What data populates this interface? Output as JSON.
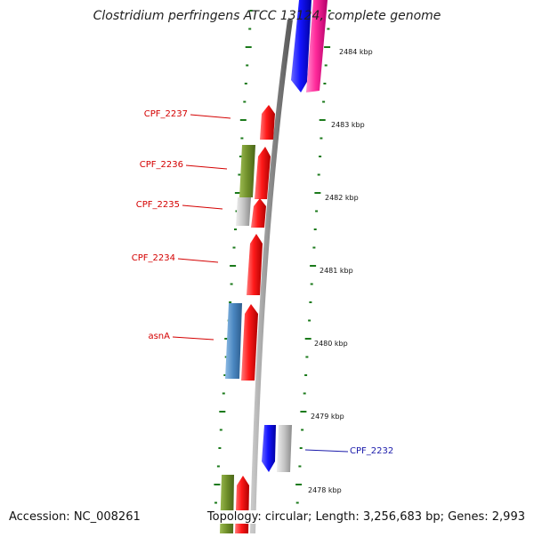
{
  "title": "Clostridium perfringens ATCC 13124, complete genome",
  "footer": {
    "accession": "Accession: NC_008261",
    "topology": "Topology: circular; Length: 3,256,683 bp; Genes: 2,993"
  },
  "colors": {
    "backbone": "#8a8a8a",
    "tick": "#1b7a1b",
    "cds_red": "#ff1a1a",
    "cds_blue": "#1414ff",
    "cds_pink": "#ff2a9a",
    "cds_gray": "#bdbdbd",
    "cds_olive": "#6f8f2a",
    "cds_steel": "#4a86c0",
    "label_red": "#d40000",
    "label_blue": "#1a1aaa"
  },
  "scale_labels": [
    "2484 kbp",
    "2483 kbp",
    "2482 kbp",
    "2481 kbp",
    "2480 kbp",
    "2479 kbp",
    "2478 kbp"
  ],
  "gene_labels": [
    {
      "text": "CPF_2237",
      "color": "red"
    },
    {
      "text": "CPF_2236",
      "color": "red"
    },
    {
      "text": "CPF_2235",
      "color": "red"
    },
    {
      "text": "CPF_2234",
      "color": "red"
    },
    {
      "text": "asnA",
      "color": "red"
    },
    {
      "text": "CPF_2232",
      "color": "blue"
    }
  ]
}
